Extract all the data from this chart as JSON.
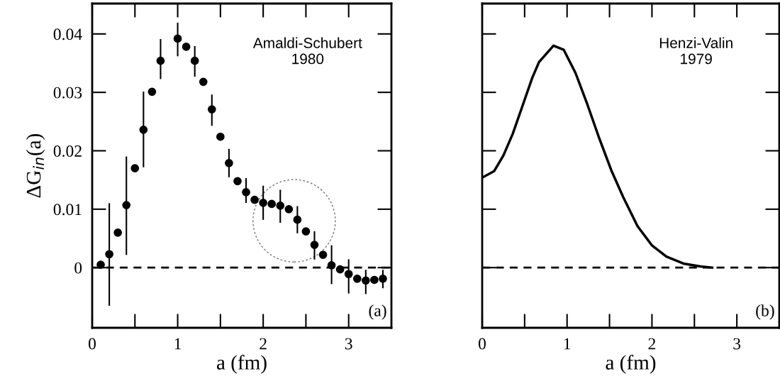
{
  "chart_data": [
    {
      "type": "scatter",
      "xlabel": "a (fm)",
      "ylabel": "ΔG$_{in}$(a)",
      "annotations": [
        "Amaldi-Schubert\n1980",
        "(a)"
      ],
      "xlim": [
        0,
        3.5
      ],
      "xticks": [
        0,
        1,
        2,
        3
      ],
      "ylim": [
        -0.0103,
        0.0452
      ],
      "yticks": [
        0,
        0.01,
        0.02,
        0.03,
        0.04
      ],
      "marker": "circle",
      "grid": false,
      "ref_lines": [
        {
          "axis": "y",
          "value": 0,
          "color": "#000000",
          "line_style": "dashed"
        }
      ],
      "series": [
        {
          "color": "#000000",
          "x": [
            0.1,
            0.2,
            0.3,
            0.4,
            0.5,
            0.6,
            0.7,
            0.8,
            1.0,
            1.1,
            1.2,
            1.3,
            1.4,
            1.5,
            1.6,
            1.7,
            1.8,
            1.9,
            2.0,
            2.1,
            2.2,
            2.3,
            2.4,
            2.5,
            2.6,
            2.7,
            2.8,
            2.9,
            3.0,
            3.1,
            3.2,
            3.3,
            3.4
          ],
          "values": [
            0.0005,
            0.0023,
            0.006,
            0.0107,
            0.017,
            0.0236,
            0.0301,
            0.0354,
            0.0392,
            0.0378,
            0.0354,
            0.0318,
            0.0271,
            0.0224,
            0.0179,
            0.0148,
            0.0129,
            0.0116,
            0.0111,
            0.0109,
            0.0106,
            0.01,
            0.0082,
            0.0062,
            0.0039,
            0.0022,
            0.0004,
            -0.0003,
            -0.0011,
            -0.0019,
            -0.0022,
            -0.0021,
            -0.0019
          ],
          "errors": [
            null,
            [
              -0.0064,
              0.0109
            ],
            null,
            [
              0.0023,
              0.0189
            ],
            null,
            [
              0.0173,
              0.03
            ],
            null,
            [
              0.0324,
              0.039
            ],
            [
              0.0363,
              0.0418
            ],
            null,
            [
              0.0328,
              0.0378
            ],
            null,
            [
              0.0244,
              0.0295
            ],
            null,
            [
              0.0156,
              0.0202
            ],
            null,
            [
              0.0112,
              0.0152
            ],
            null,
            [
              0.0083,
              0.0139
            ],
            null,
            [
              0.0078,
              0.0132
            ],
            null,
            [
              0.006,
              0.0104
            ],
            null,
            [
              0.0015,
              0.0061
            ],
            null,
            [
              -0.0027,
              0.0037
            ],
            null,
            [
              -0.0043,
              0.0013
            ],
            null,
            [
              -0.0044,
              -0.0005
            ],
            null,
            [
              -0.0034,
              -0.0005
            ]
          ]
        }
      ]
    },
    {
      "type": "line",
      "xlabel": "a (fm)",
      "annotations": [
        "Henzi-Valin\n1979",
        "(b)"
      ],
      "xlim": [
        0,
        3.5
      ],
      "xticks": [
        0,
        1,
        2,
        3
      ],
      "ylim": [
        -0.0103,
        0.0452
      ],
      "yticks": [
        {
          "value": 0,
          "label": null
        },
        {
          "value": 0.01,
          "label": null
        },
        {
          "value": 0.02,
          "label": null
        },
        {
          "value": 0.03,
          "label": null
        },
        {
          "value": 0.04,
          "label": null
        }
      ],
      "tick_labels": "x",
      "marker": "none",
      "line_style": "solid",
      "grid": false,
      "ref_lines": [
        {
          "axis": "y",
          "value": 0,
          "color": "#000000",
          "line_style": "dashed"
        }
      ],
      "series": [
        {
          "color": "#000000",
          "x": [
            0,
            0.14,
            0.25,
            0.36,
            0.48,
            0.59,
            0.67,
            0.84,
            0.96,
            1.1,
            1.24,
            1.38,
            1.52,
            1.66,
            1.83,
            2.0,
            2.17,
            2.37,
            2.57,
            2.71
          ],
          "values": [
            0.0154,
            0.0165,
            0.0192,
            0.0229,
            0.0279,
            0.0325,
            0.0352,
            0.038,
            0.0373,
            0.0333,
            0.0279,
            0.0221,
            0.0167,
            0.0121,
            0.0071,
            0.0038,
            0.0019,
            0.0007,
            0.0002,
            0.0
          ]
        }
      ]
    }
  ]
}
